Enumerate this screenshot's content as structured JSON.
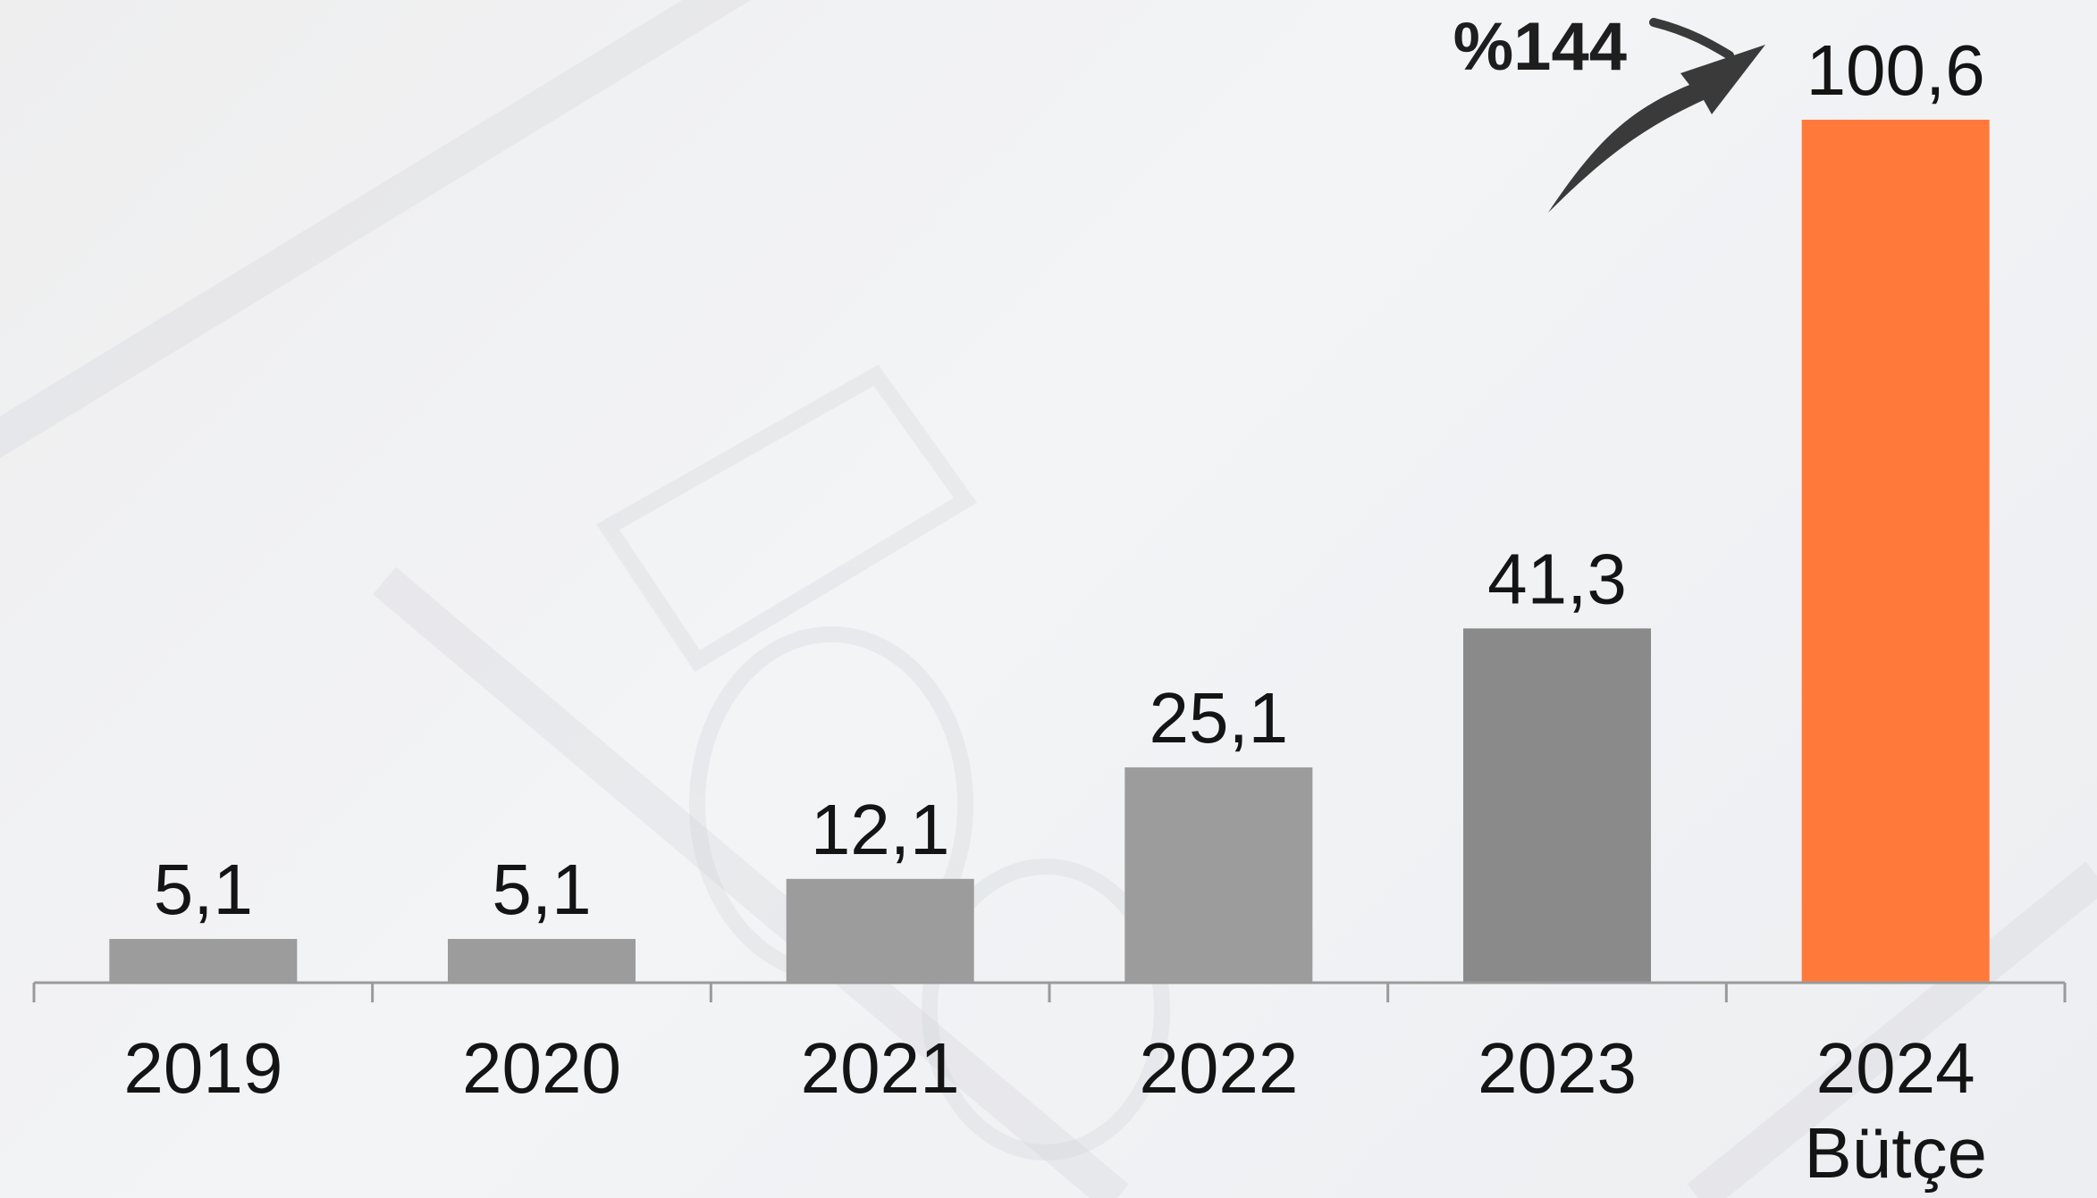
{
  "chart_data": {
    "type": "bar",
    "categories": [
      "2019",
      "2020",
      "2021",
      "2022",
      "2023",
      "2024"
    ],
    "category_sublabels": [
      "",
      "",
      "",
      "",
      "",
      "Bütçe"
    ],
    "values": [
      5.1,
      5.1,
      12.1,
      25.1,
      41.3,
      100.6
    ],
    "value_labels": [
      "5,1",
      "5,1",
      "12,1",
      "25,1",
      "41,3",
      "100,6"
    ],
    "bar_colors": [
      "#9c9c9c",
      "#9c9c9c",
      "#9c9c9c",
      "#9c9c9c",
      "#8a8a8a",
      "#ff7a3a"
    ],
    "highlight_color": "#ff7a3a",
    "annotation": {
      "text": "%144",
      "arrow": "curved-arrow-up-right",
      "color": "#3a3a3a"
    },
    "title": "",
    "xlabel": "",
    "ylabel": "",
    "ylim": [
      0,
      100.6
    ],
    "grid": false,
    "legend": "none"
  }
}
